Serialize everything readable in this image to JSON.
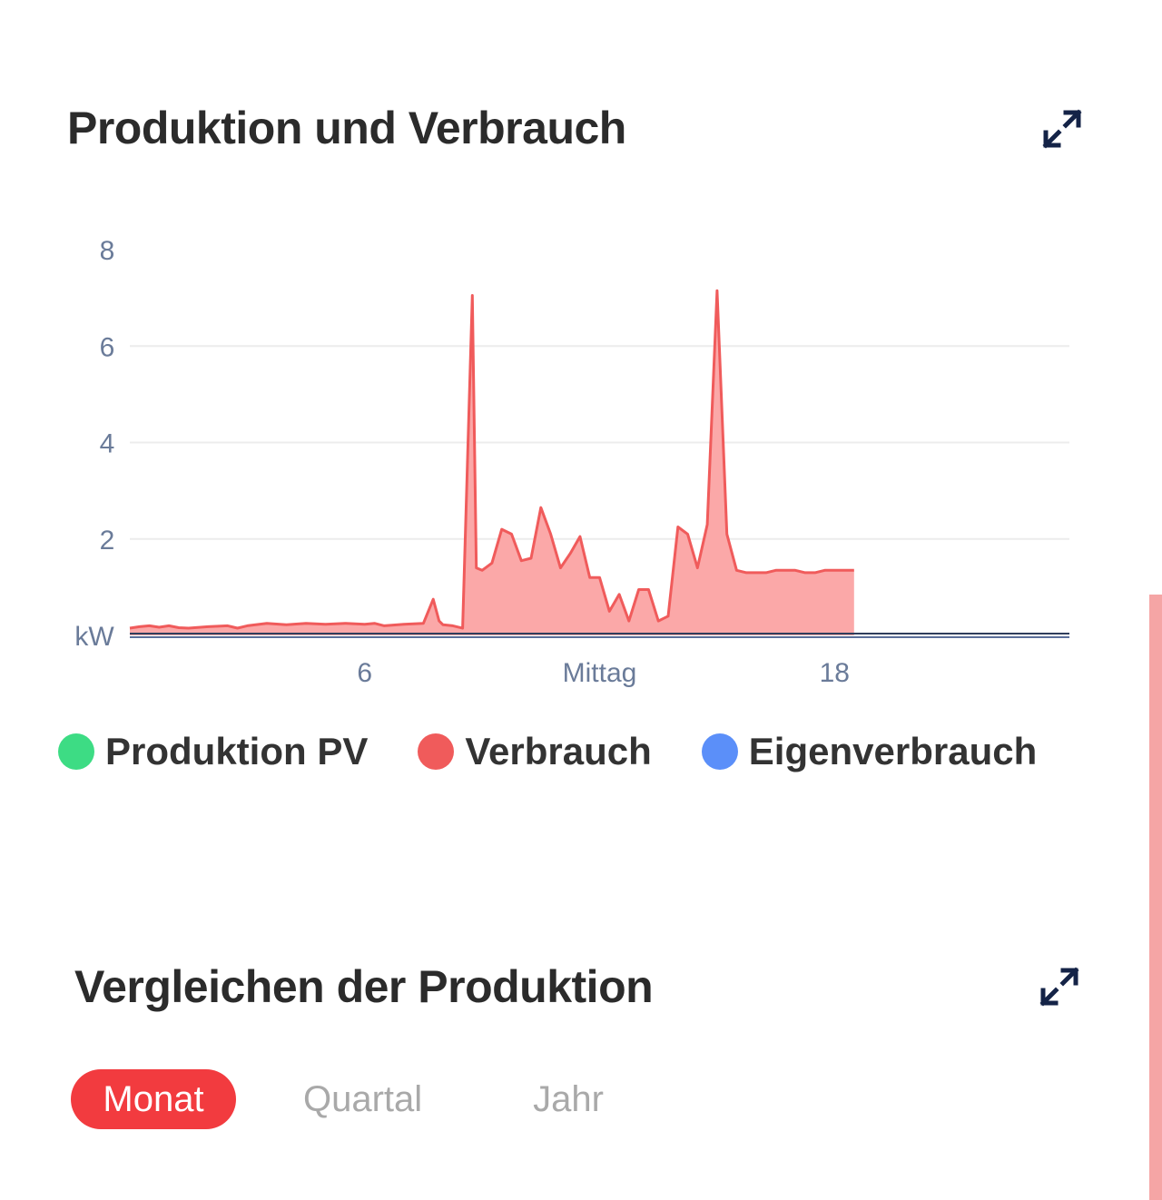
{
  "section_production": {
    "title": "Produktion und Verbrauch",
    "expand_icon": "expand-arrows-icon"
  },
  "chart_data": {
    "type": "area",
    "x_unit": "hour of day",
    "x_ticks": [
      6,
      12,
      18
    ],
    "x_tick_labels": [
      "6",
      "Mittag",
      "18"
    ],
    "xlim": [
      0,
      24
    ],
    "ylim": [
      0,
      8
    ],
    "y_ticks": [
      2,
      4,
      6,
      8
    ],
    "y_tick_labels": [
      "2",
      "4",
      "6",
      "8"
    ],
    "y_unit_label": "kW",
    "grid": true,
    "legend_position": "bottom",
    "series": [
      {
        "name": "Produktion PV",
        "color": "#3ddc84",
        "x": [
          0,
          24
        ],
        "values": [
          0,
          0
        ]
      },
      {
        "name": "Verbrauch",
        "color": "#f05b5b",
        "fill": "#fba8a8",
        "x": [
          0.0,
          0.25,
          0.5,
          0.75,
          1.0,
          1.25,
          1.5,
          2.0,
          2.5,
          2.75,
          3.0,
          3.5,
          4.0,
          4.5,
          5.0,
          5.5,
          6.0,
          6.25,
          6.5,
          7.0,
          7.5,
          7.75,
          7.9,
          8.0,
          8.25,
          8.5,
          8.75,
          8.85,
          9.0,
          9.25,
          9.5,
          9.75,
          10.0,
          10.25,
          10.5,
          10.75,
          11.0,
          11.25,
          11.5,
          11.75,
          12.0,
          12.25,
          12.5,
          12.75,
          13.0,
          13.25,
          13.5,
          13.75,
          14.0,
          14.25,
          14.5,
          14.75,
          15.0,
          15.25,
          15.5,
          15.75,
          16.0,
          16.25,
          16.5,
          16.75,
          17.0,
          17.25,
          17.5,
          17.75,
          18.0,
          18.25,
          18.5
        ],
        "values": [
          0.15,
          0.18,
          0.2,
          0.17,
          0.2,
          0.16,
          0.15,
          0.18,
          0.2,
          0.15,
          0.2,
          0.25,
          0.22,
          0.25,
          0.23,
          0.25,
          0.23,
          0.25,
          0.2,
          0.23,
          0.25,
          0.75,
          0.3,
          0.22,
          0.2,
          0.15,
          7.05,
          1.4,
          1.35,
          1.5,
          2.2,
          2.1,
          1.55,
          1.6,
          2.65,
          2.1,
          1.4,
          1.7,
          2.05,
          1.2,
          1.2,
          0.5,
          0.85,
          0.3,
          0.95,
          0.95,
          0.3,
          0.4,
          2.25,
          2.1,
          1.4,
          2.3,
          7.15,
          2.1,
          1.35,
          1.3,
          1.3,
          1.3,
          1.35,
          1.35,
          1.35,
          1.3,
          1.3,
          1.35,
          1.35,
          1.35,
          1.35
        ]
      },
      {
        "name": "Eigenverbrauch",
        "color": "#5b8ff9",
        "x": [
          0,
          24
        ],
        "values": [
          0,
          0
        ]
      }
    ]
  },
  "section_compare": {
    "title": "Vergleichen der Produktion",
    "expand_icon": "expand-arrows-icon",
    "tabs": [
      {
        "label": "Monat",
        "active": true
      },
      {
        "label": "Quartal",
        "active": false
      },
      {
        "label": "Jahr",
        "active": false
      }
    ]
  },
  "colors": {
    "accent_red": "#f23b3f",
    "axis_text": "#6a7b99",
    "grid": "#ececec",
    "icon_navy": "#142347"
  }
}
